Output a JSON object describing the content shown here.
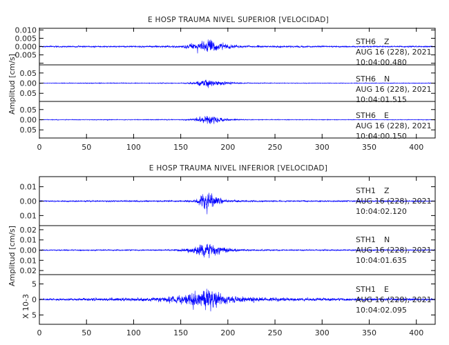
{
  "colors": {
    "trace": "#0000ff",
    "axis": "#000000",
    "background": "#ffffff",
    "text": "#222222"
  },
  "chart_data": [
    {
      "type": "line",
      "title": "E HOSP TRAUMA NIVEL SUPERIOR [VELOCIDAD]",
      "ylabel": "Amplitud [cm/s]",
      "xlim": [
        0,
        420
      ],
      "xticks": [
        0,
        50,
        100,
        150,
        200,
        250,
        300,
        350,
        400
      ],
      "xticklabels": [
        "0",
        "50",
        "100",
        "150",
        "200",
        "250",
        "300",
        "350",
        "400"
      ],
      "grid": false,
      "series": [
        {
          "name": "STH6 Z",
          "station": "STH6",
          "component": "Z",
          "date": "AUG 16 (228), 2021",
          "time": "10:04:00.480",
          "ylim": [
            -0.011,
            0.011
          ],
          "yticks": [
            0.01,
            0.005,
            0.0,
            -0.005,
            -0.01
          ],
          "yticklabels": [
            "0.010",
            "0.005",
            "0.000",
            "0.005",
            ""
          ],
          "envelope": {
            "x": [
              0,
              100,
              150,
              160,
              170,
              175,
              180,
              185,
              190,
              200,
              215,
              250,
              300,
              420
            ],
            "amp": [
              0.0008,
              0.0009,
              0.0012,
              0.0035,
              0.005,
              0.0065,
              0.0085,
              0.007,
              0.005,
              0.0025,
              0.0013,
              0.001,
              0.0009,
              0.0008
            ]
          }
        },
        {
          "name": "STH6 N",
          "station": "STH6",
          "component": "N",
          "date": "AUG 16 (228), 2021",
          "time": "10:04:01.515",
          "ylim": [
            -0.09,
            0.09
          ],
          "yticks": [
            0.05,
            0.0,
            -0.05
          ],
          "yticklabels": [
            "0.05",
            "0.00",
            "0.05"
          ],
          "envelope": {
            "x": [
              0,
              150,
              165,
              172,
              178,
              184,
              192,
              205,
              220,
              260,
              420
            ],
            "amp": [
              0.003,
              0.004,
              0.012,
              0.03,
              0.045,
              0.035,
              0.02,
              0.008,
              0.004,
              0.003,
              0.003
            ]
          }
        },
        {
          "name": "STH6 E",
          "station": "STH6",
          "component": "E",
          "date": "AUG 16 (228), 2021",
          "time": "10:04:00.150",
          "ylim": [
            -0.09,
            0.09
          ],
          "yticks": [
            0.05,
            0.0,
            -0.05
          ],
          "yticklabels": [
            "0.05",
            "0.00",
            "0.05"
          ],
          "envelope": {
            "x": [
              0,
              150,
              165,
              172,
              178,
              184,
              192,
              205,
              220,
              260,
              420
            ],
            "amp": [
              0.003,
              0.004,
              0.013,
              0.03,
              0.048,
              0.035,
              0.02,
              0.008,
              0.004,
              0.003,
              0.003
            ]
          }
        }
      ]
    },
    {
      "type": "line",
      "title": "E HOSP TRAUMA NIVEL INFERIOR [VELOCIDAD]",
      "ylabel": "Amplitud [cm/s]",
      "ylabel_lower": "X 10-3",
      "xlim": [
        0,
        420
      ],
      "xticks": [
        0,
        50,
        100,
        150,
        200,
        250,
        300,
        350,
        400
      ],
      "xticklabels": [
        "0",
        "50",
        "100",
        "150",
        "200",
        "250",
        "300",
        "350",
        "400"
      ],
      "grid": false,
      "series": [
        {
          "name": "STH1 Z",
          "station": "STH1",
          "component": "Z",
          "date": "AUG 16 (228), 2021",
          "time": "10:04:02.120",
          "ylim": [
            -0.017,
            0.017
          ],
          "yticks": [
            0.01,
            0.0,
            -0.01
          ],
          "yticklabels": [
            "0.01",
            "0.00",
            "0.01"
          ],
          "envelope": {
            "x": [
              0,
              150,
              165,
              172,
              178,
              184,
              190,
              200,
              215,
              250,
              420
            ],
            "amp": [
              0.0008,
              0.001,
              0.002,
              0.008,
              0.013,
              0.01,
              0.005,
              0.002,
              0.0012,
              0.0009,
              0.0008
            ]
          }
        },
        {
          "name": "STH1 N",
          "station": "STH1",
          "component": "N",
          "date": "AUG 16 (228), 2021",
          "time": "10:04:01.635",
          "ylim": [
            -0.024,
            0.024
          ],
          "yticks": [
            0.02,
            0.01,
            0.0,
            -0.01,
            -0.02
          ],
          "yticklabels": [
            "0.02",
            "0.01",
            "0.00",
            "0.01",
            "0.02"
          ],
          "envelope": {
            "x": [
              0,
              140,
              155,
              165,
              172,
              178,
              184,
              192,
              205,
              220,
              260,
              420
            ],
            "amp": [
              0.001,
              0.0012,
              0.003,
              0.007,
              0.012,
              0.017,
              0.012,
              0.007,
              0.003,
              0.0015,
              0.0012,
              0.001
            ]
          }
        },
        {
          "name": "STH1 E",
          "station": "STH1",
          "component": "E",
          "date": "AUG 16 (228), 2021",
          "time": "10:04:02.095",
          "ylim": [
            -8.0,
            8.0
          ],
          "yticks": [
            5,
            0,
            -5
          ],
          "yticklabels": [
            "5",
            "0",
            "5"
          ],
          "envelope": {
            "x": [
              0,
              60,
              120,
              145,
              160,
              170,
              178,
              185,
              195,
              210,
              240,
              300,
              420
            ],
            "amp": [
              0.5,
              0.9,
              1.2,
              2.2,
              4.2,
              5.5,
              7.0,
              5.0,
              3.0,
              1.8,
              1.2,
              0.9,
              0.7
            ]
          }
        }
      ]
    }
  ]
}
